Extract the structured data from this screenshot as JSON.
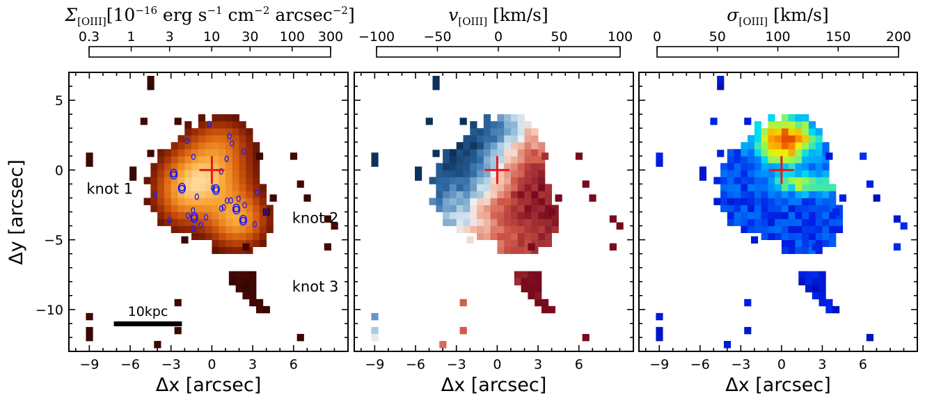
{
  "figure": {
    "y_axis_label": "Δy [arcsec]",
    "x_axis_label": "Δx [arcsec]"
  },
  "chart_data": [
    {
      "type": "heatmap",
      "panel": "surface-brightness",
      "colorbar": {
        "symbol": "Σ",
        "subscript": "[OIII]",
        "unit_text": "[10",
        "unit_exp": "−16",
        "unit_rest": " erg s",
        "exp1": "−1",
        "unit_mid": " cm",
        "exp2": "−2",
        "unit_end": " arcsec",
        "exp3": "−2",
        "close": "]",
        "scale": "log",
        "ticks": [
          "0.3",
          "1",
          "3",
          "10",
          "30",
          "100",
          "300"
        ],
        "range": [
          0.3,
          300
        ]
      },
      "x_ticks": [
        "−9",
        "−6",
        "−3",
        "0",
        "3",
        "6"
      ],
      "y_ticks": [
        "5",
        "0",
        "−5",
        "−10"
      ],
      "xlim": [
        -10.5,
        10
      ],
      "ylim": [
        -13,
        7
      ],
      "annotations": [
        {
          "text": "knot 1",
          "x": -7.5,
          "y": -1.7
        },
        {
          "text": "knot 2",
          "x": 7.6,
          "y": -3.8
        },
        {
          "text": "knot 3",
          "x": 7.6,
          "y": -8.7
        }
      ],
      "scale_bar": {
        "label": "10kpc",
        "length_arcsec": 5.0
      },
      "center_marker": {
        "x": 0,
        "y": 0,
        "color": "#e8171b"
      },
      "contour_color": "#1a1aff",
      "continuum_peaks": [
        [
          -2.8,
          -0.3
        ],
        [
          -2.2,
          -1.3
        ],
        [
          0.3,
          -1.4
        ],
        [
          2.3,
          -3.6
        ],
        [
          1.8,
          -2.8
        ],
        [
          -1.3,
          -3.4
        ]
      ]
    },
    {
      "type": "heatmap",
      "panel": "velocity",
      "colorbar": {
        "symbol": "v",
        "subscript": "[OIII]",
        "unit_text": " [km/s]",
        "ticks": [
          "−100",
          "−50",
          "0",
          "50",
          "100"
        ],
        "range": [
          -100,
          100
        ]
      },
      "x_ticks": [
        "−9",
        "−6",
        "−3",
        "0",
        "3",
        "6"
      ],
      "xlim": [
        -10.5,
        10
      ],
      "ylim": [
        -13,
        7
      ],
      "center_marker": {
        "x": 0,
        "y": 0,
        "color": "#e8171b"
      }
    },
    {
      "type": "heatmap",
      "panel": "velocity-dispersion",
      "colorbar": {
        "symbol": "σ",
        "subscript": "[OIII]",
        "unit_text": " [km/s]",
        "ticks": [
          "0",
          "50",
          "100",
          "150",
          "200"
        ],
        "range": [
          0,
          200
        ]
      },
      "x_ticks": [
        "−9",
        "−6",
        "−3",
        "0",
        "3",
        "6"
      ],
      "xlim": [
        -10.5,
        10
      ],
      "ylim": [
        -13,
        7
      ],
      "center_marker": {
        "x": 0,
        "y": 0,
        "color": "#e8171b"
      }
    }
  ]
}
